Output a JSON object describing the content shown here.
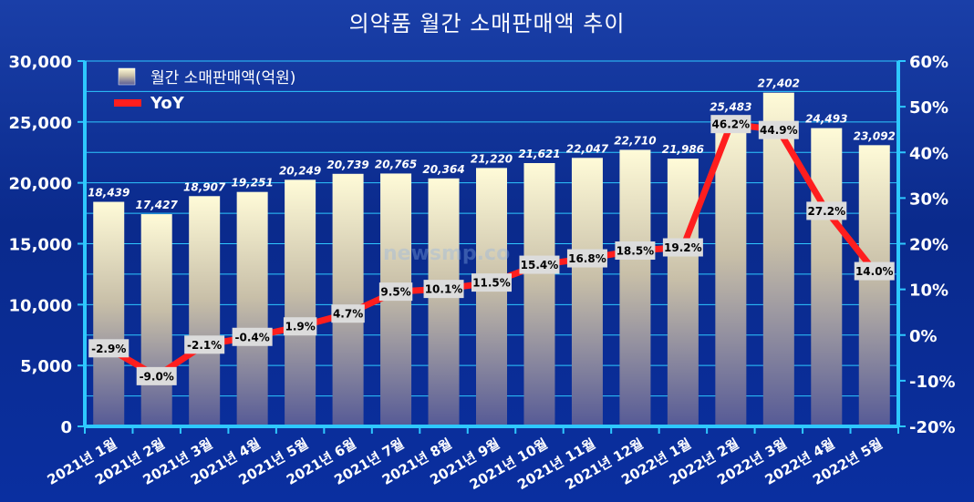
{
  "colors": {
    "axis": "#2ec8ff",
    "grid": "#2ec8ff",
    "line": "#ff1e1e",
    "bar_top": "#fffbd8",
    "bar_bottom": "#565a96",
    "label_box": "#dcdcdc"
  },
  "watermark": "newsmp.co",
  "chart_data": {
    "type": "bar",
    "title": "의약품 월간 소매판매액 추이",
    "categories": [
      "2021년 1월",
      "2021년 2월",
      "2021년 3월",
      "2021년 4월",
      "2021년 5월",
      "2021년 6월",
      "2021년 7월",
      "2021년 8월",
      "2021년 9월",
      "2021년 10월",
      "2021년 11월",
      "2021년 12월",
      "2022년 1월",
      "2022년 2월",
      "2022년 3월",
      "2022년 4월",
      "2022년 5월"
    ],
    "series": [
      {
        "name": "월간 소매판매액(억원)",
        "type": "bar",
        "axis": "left",
        "values": [
          18439,
          17427,
          18907,
          19251,
          20249,
          20739,
          20765,
          20364,
          21220,
          21621,
          22047,
          22710,
          21986,
          25483,
          27402,
          24493,
          23092
        ],
        "labels": [
          "18,439",
          "17,427",
          "18,907",
          "19,251",
          "20,249",
          "20,739",
          "20,765",
          "20,364",
          "21,220",
          "21,621",
          "22,047",
          "22,710",
          "21,986",
          "25,483",
          "27,402",
          "24,493",
          "23,092"
        ]
      },
      {
        "name": "YoY",
        "type": "line",
        "axis": "right",
        "values": [
          -2.9,
          -9.0,
          -2.1,
          -0.4,
          1.9,
          4.7,
          9.5,
          10.1,
          11.5,
          15.4,
          16.8,
          18.5,
          19.2,
          46.2,
          44.9,
          27.2,
          14.0
        ],
        "labels": [
          "-2.9%",
          "-9.0%",
          "-2.1%",
          "-0.4%",
          "1.9%",
          "4.7%",
          "9.5%",
          "10.1%",
          "11.5%",
          "15.4%",
          "16.8%",
          "18.5%",
          "19.2%",
          "46.2%",
          "44.9%",
          "27.2%",
          "14.0%"
        ]
      }
    ],
    "y_left": {
      "range": [
        0,
        30000
      ],
      "ticks": [
        0,
        5000,
        10000,
        15000,
        20000,
        25000,
        30000
      ],
      "tick_labels": [
        "0",
        "5,000",
        "10,000",
        "15,000",
        "20,000",
        "25,000",
        "30,000"
      ]
    },
    "y_right": {
      "range": [
        -20,
        60
      ],
      "ticks": [
        -20,
        -10,
        0,
        10,
        20,
        30,
        40,
        50,
        60
      ],
      "tick_labels": [
        "-20%",
        "-10%",
        "0%",
        "10%",
        "20%",
        "30%",
        "40%",
        "50%",
        "60%"
      ]
    },
    "grid": true,
    "legend": "top-left"
  }
}
